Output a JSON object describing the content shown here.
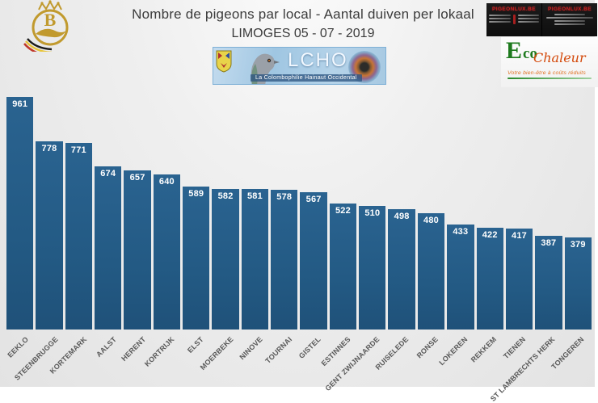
{
  "header": {
    "title_line1": "Nombre de pigeons par local - Aantal duiven per lokaal",
    "title_line2": "LIMOGES 05 - 07 - 2019",
    "federation_logo_letter": "B",
    "ads": {
      "left_title": "PIGEONLUX.BE",
      "right_title": "PIGEONLUX.BE"
    },
    "eco_logo": {
      "e": "E",
      "co": "co",
      "chaleur": "Chaleur",
      "tagline": "Votre bien-être à coûts réduits"
    },
    "lcho_banner": {
      "acronym": "LCHO",
      "subtitle": "La Colombophilie Hainaut Occidental"
    }
  },
  "chart_data": {
    "type": "bar",
    "title": "Nombre de pigeons par local - Aantal duiven per lokaal — LIMOGES 05 - 07 - 2019",
    "categories": [
      "EEKLO",
      "STEENBRUGGE",
      "KORTEMARK",
      "AALST",
      "HERENT",
      "KORTRIJK",
      "ELST",
      "MOERBEKE",
      "NINOVE",
      "TOURNAI",
      "GISTEL",
      "ESTINNES",
      "GENT ZWIJNAARDE",
      "RUISELEDE",
      "RONSE",
      "LOKEREN",
      "REKKEM",
      "TIENEN",
      "ST LAMBRECHTS HERK",
      "TONGEREN"
    ],
    "values": [
      961,
      778,
      771,
      674,
      657,
      640,
      589,
      582,
      581,
      578,
      567,
      522,
      510,
      498,
      480,
      433,
      422,
      417,
      387,
      379
    ],
    "xlabel": "",
    "ylabel": "",
    "ylim": [
      0,
      961
    ],
    "grid": false,
    "legend": false,
    "value_labels": true,
    "bar_color": "#235a84",
    "value_label_color": "#ffffff",
    "category_label_color": "#595959"
  },
  "colors": {
    "background": "#e9e9e9",
    "title_text": "#3b3b3b",
    "ad_accent": "#c92222",
    "eco_green": "#1e7a1e",
    "eco_orange": "#d4490a",
    "gold": "#c19a2e"
  }
}
